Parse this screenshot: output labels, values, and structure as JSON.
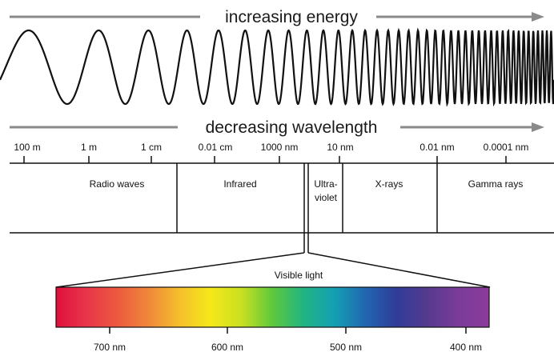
{
  "headers": {
    "energy": "increasing energy",
    "wavelength": "decreasing wavelength"
  },
  "scale_ticks": [
    "100 m",
    "1 m",
    "1 cm",
    "0.01 cm",
    "1000 nm",
    "10 nm",
    "0.01 nm",
    "0.0001 nm"
  ],
  "regions": {
    "radio": "Radio waves",
    "infrared": "Infrared",
    "uv_line1": "Ultra-",
    "uv_line2": "violet",
    "xray": "X-rays",
    "gamma": "Gamma rays"
  },
  "visible": {
    "title": "Visible light",
    "ticks": [
      "700 nm",
      "600 nm",
      "500 nm",
      "400 nm"
    ],
    "gradient_colors": [
      "#e0103c",
      "#e8364a",
      "#ec5a3e",
      "#f0883a",
      "#f5c02c",
      "#f5e81a",
      "#c8e020",
      "#5ec83c",
      "#21b482",
      "#14a0b4",
      "#2166b0",
      "#2f3c98",
      "#553a8e",
      "#7a3c98",
      "#8c3a9c"
    ]
  },
  "colors": {
    "arrow": "#8a8a8a",
    "ink": "#111111"
  }
}
